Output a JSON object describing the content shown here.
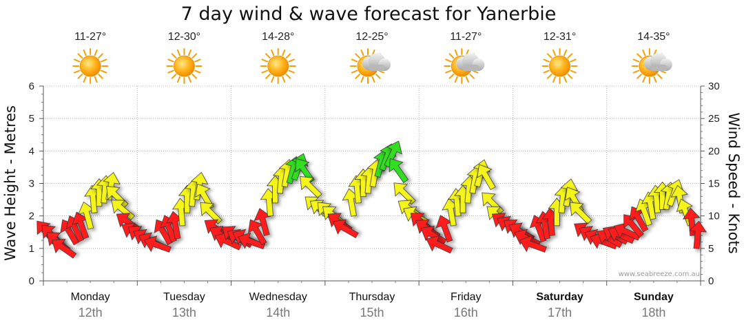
{
  "chart_data": {
    "type": "arrow-series",
    "title": "7 day wind & wave forecast for Yanerbie",
    "ylabel_left": "Wave Height - Metres",
    "ylabel_right": "Wind Speed - Knots",
    "y_left": {
      "min": 0,
      "max": 6,
      "ticks": [
        0,
        1,
        2,
        3,
        4,
        5,
        6
      ]
    },
    "y_right": {
      "min": 0,
      "max": 30,
      "ticks": [
        0,
        5,
        10,
        15,
        20,
        25,
        30
      ]
    },
    "days": [
      {
        "name": "Monday",
        "date": "12th",
        "temp": "11-27°",
        "weather": "sunny",
        "bold": false
      },
      {
        "name": "Tuesday",
        "date": "13th",
        "temp": "12-30°",
        "weather": "sunny",
        "bold": false
      },
      {
        "name": "Wednesday",
        "date": "14th",
        "temp": "14-28°",
        "weather": "sunny",
        "bold": false
      },
      {
        "name": "Thursday",
        "date": "15th",
        "temp": "12-25°",
        "weather": "partly-cloudy",
        "bold": false
      },
      {
        "name": "Friday",
        "date": "16th",
        "temp": "11-27°",
        "weather": "partly-cloudy",
        "bold": false
      },
      {
        "name": "Saturday",
        "date": "17th",
        "temp": "12-31°",
        "weather": "sunny",
        "bold": true
      },
      {
        "name": "Sunday",
        "date": "18th",
        "temp": "14-35°",
        "weather": "partly-cloudy",
        "bold": true
      }
    ],
    "wind_knots": [
      7.5,
      7.0,
      6.0,
      5.0,
      7.5,
      8.0,
      8.5,
      10.0,
      12.5,
      13.5,
      14.0,
      14.5,
      13.0,
      11.0,
      9.0,
      7.5,
      7.0,
      6.5,
      6.0,
      5.5,
      7.5,
      8.0,
      8.5,
      10.5,
      12.5,
      13.5,
      14.5,
      13.0,
      10.5,
      8.0,
      7.0,
      6.0,
      7.0,
      6.5,
      6.5,
      6.0,
      7.5,
      9.0,
      12.0,
      14.0,
      15.5,
      16.5,
      17.0,
      17.5,
      17.0,
      14.5,
      11.5,
      11.0,
      10.5,
      10.0,
      9.0,
      8.0,
      12.0,
      14.0,
      15.0,
      15.5,
      16.5,
      18.0,
      19.0,
      19.5,
      17.0,
      13.5,
      11.0,
      10.0,
      9.0,
      8.0,
      7.0,
      5.5,
      8.0,
      10.5,
      12.0,
      12.5,
      14.0,
      15.5,
      16.5,
      16.0,
      12.0,
      10.0,
      9.0,
      8.5,
      8.0,
      7.5,
      6.5,
      5.5,
      8.0,
      8.5,
      9.0,
      10.5,
      12.5,
      13.5,
      12.5,
      10.5,
      7.5,
      7.0,
      6.5,
      6.0,
      6.5,
      7.0,
      7.0,
      7.5,
      8.5,
      9.5,
      10.5,
      11.5,
      12.5,
      13.0,
      13.0,
      13.5,
      12.5,
      10.5,
      9.0,
      7.0
    ],
    "direction_deg": [
      140,
      135,
      130,
      125,
      150,
      155,
      160,
      165,
      175,
      180,
      185,
      190,
      135,
      130,
      125,
      120,
      125,
      120,
      115,
      110,
      150,
      160,
      170,
      175,
      180,
      185,
      190,
      150,
      135,
      125,
      120,
      115,
      125,
      120,
      115,
      110,
      150,
      165,
      175,
      180,
      185,
      190,
      195,
      200,
      145,
      135,
      130,
      125,
      135,
      130,
      125,
      120,
      170,
      175,
      180,
      185,
      190,
      195,
      200,
      205,
      145,
      135,
      125,
      120,
      130,
      125,
      120,
      115,
      160,
      170,
      175,
      180,
      185,
      190,
      195,
      150,
      135,
      130,
      125,
      120,
      125,
      120,
      115,
      110,
      160,
      170,
      175,
      180,
      185,
      190,
      150,
      135,
      125,
      120,
      115,
      110,
      120,
      120,
      115,
      115,
      140,
      150,
      160,
      170,
      175,
      180,
      190,
      200,
      170,
      160,
      175,
      185
    ],
    "color_scale": {
      "red": "0-10 knots",
      "yellow": "10-17 knots",
      "green": "17+ knots"
    },
    "colors": {
      "red": "#ff1a1a",
      "yellow": "#f5f51f",
      "green": "#33dd22",
      "grid": "#9a9a9a"
    }
  },
  "credit": "www.seabreeze.com.au"
}
